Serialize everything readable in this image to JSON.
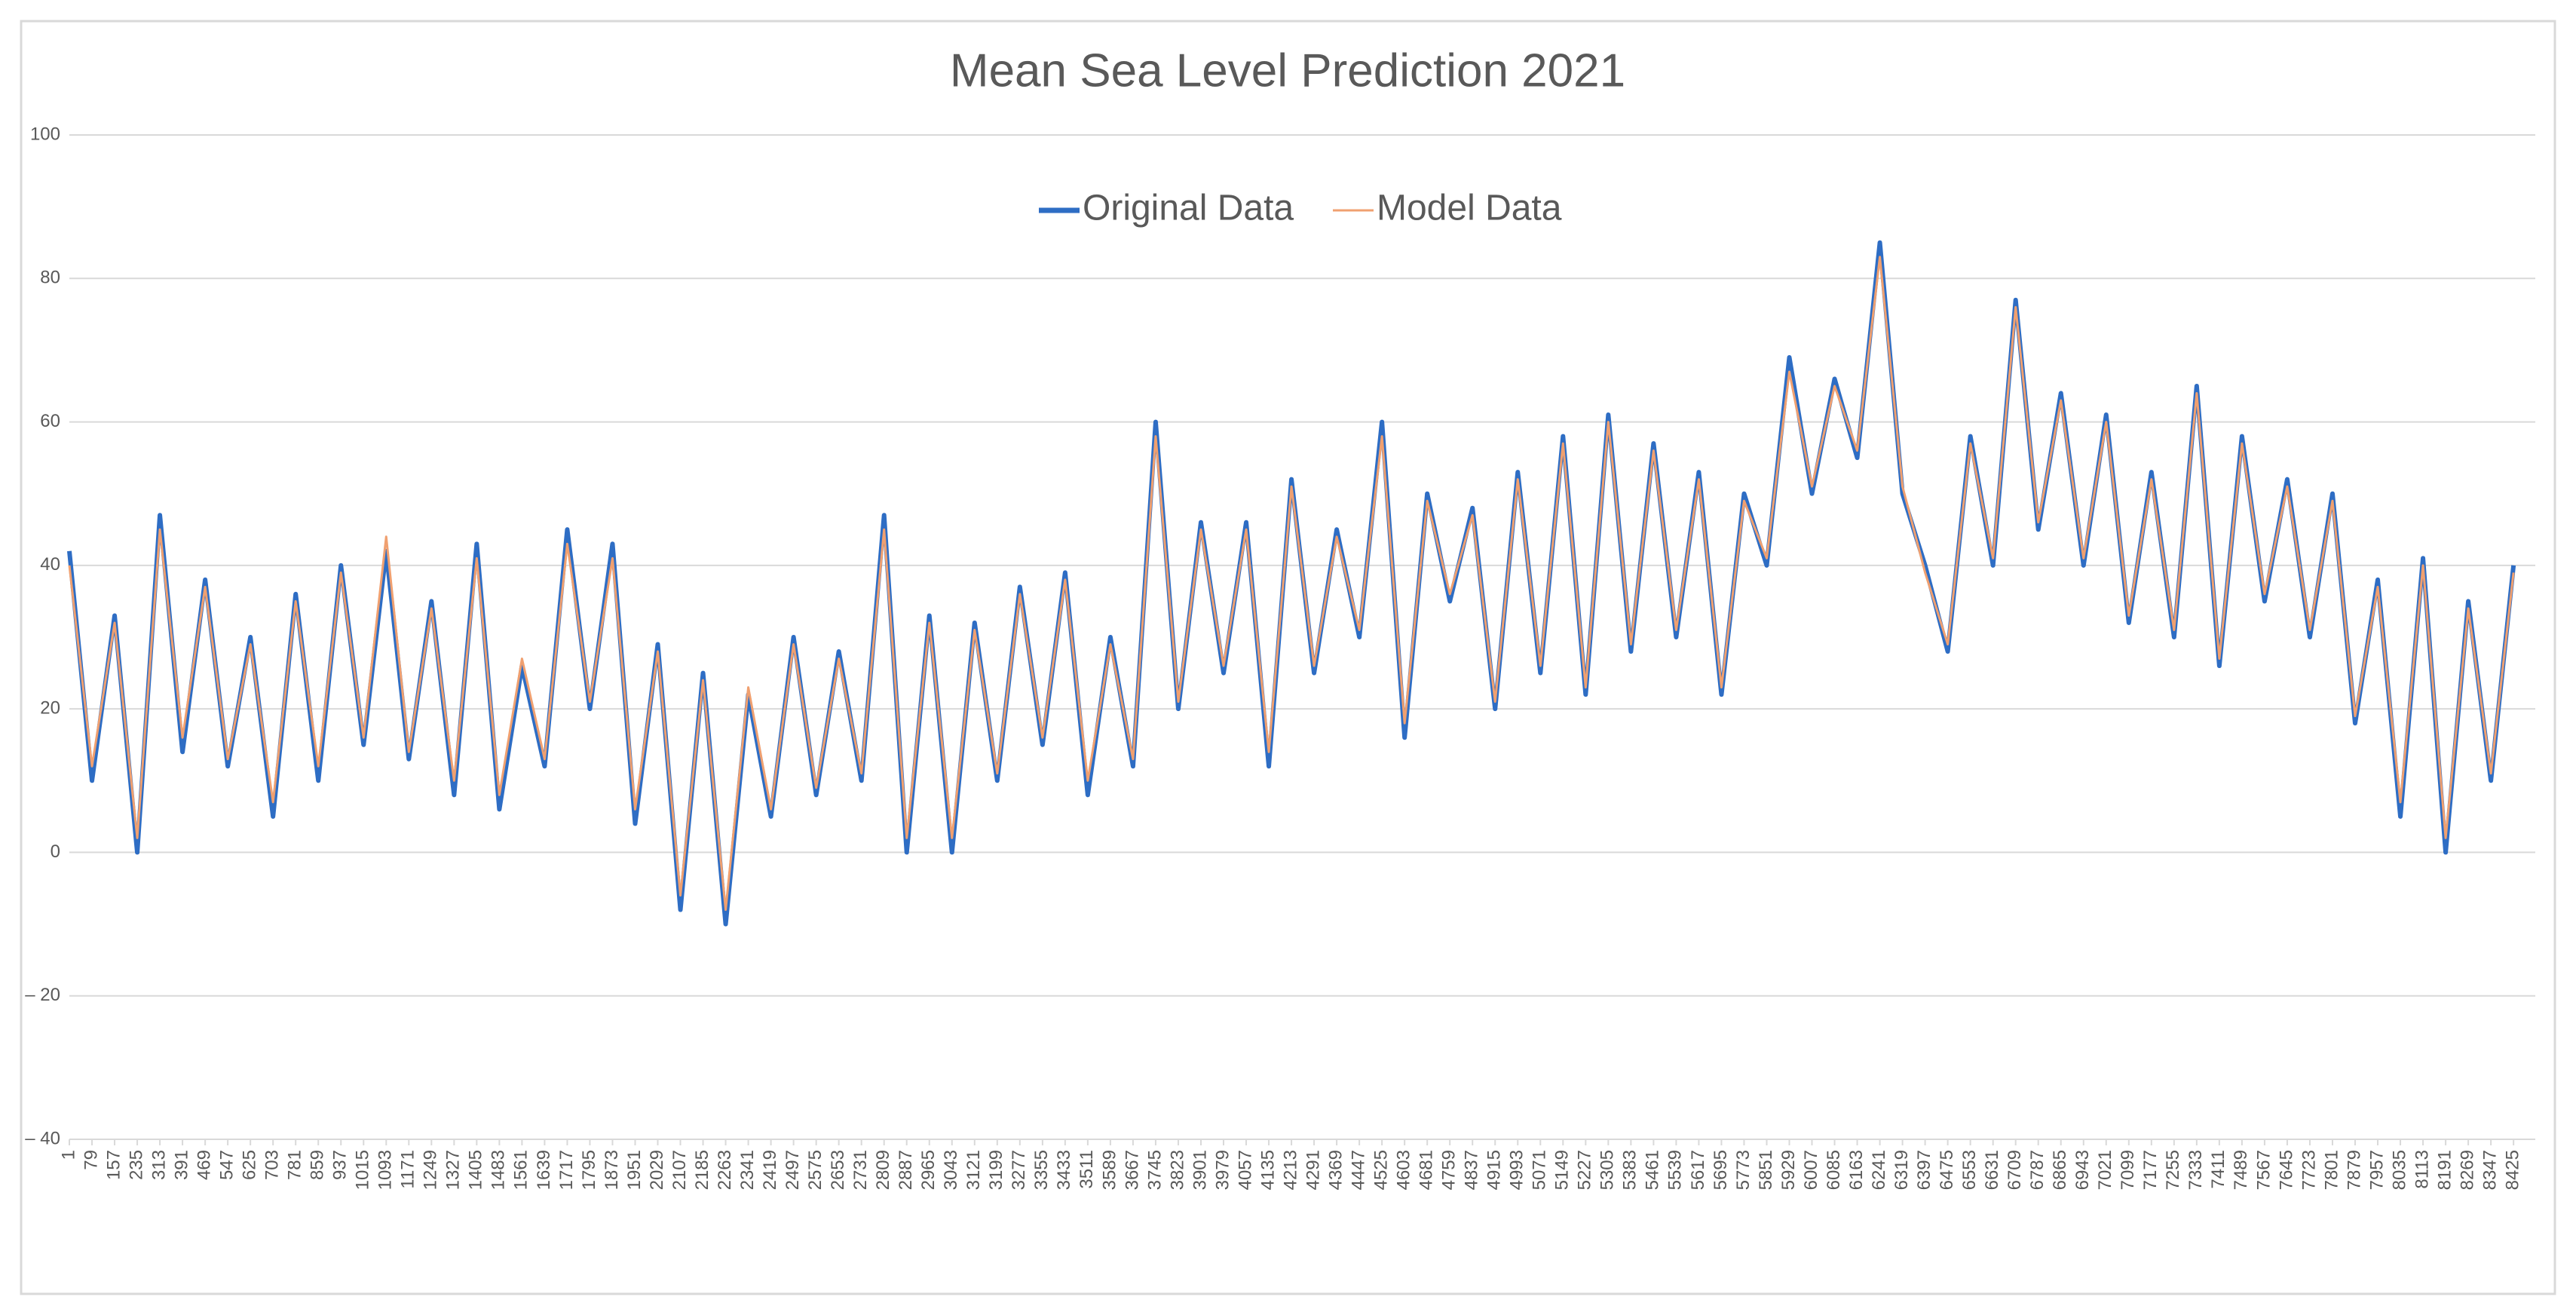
{
  "chart_data": {
    "type": "line",
    "title": "Mean Sea Level Prediction 2021",
    "x": [
      1,
      79,
      157,
      235,
      313,
      391,
      469,
      547,
      625,
      703,
      781,
      859,
      937,
      1015,
      1093,
      1171,
      1249,
      1327,
      1405,
      1483,
      1561,
      1639,
      1717,
      1795,
      1873,
      1951,
      2029,
      2107,
      2185,
      2263,
      2341,
      2419,
      2497,
      2575,
      2653,
      2731,
      2809,
      2887,
      2965,
      3043,
      3121,
      3199,
      3277,
      3355,
      3433,
      3511,
      3589,
      3667,
      3745,
      3823,
      3901,
      3979,
      4057,
      4135,
      4213,
      4291,
      4369,
      4447,
      4525,
      4603,
      4681,
      4759,
      4837,
      4915,
      4993,
      5071,
      5149,
      5227,
      5305,
      5383,
      5461,
      5539,
      5617,
      5695,
      5773,
      5851,
      5929,
      6007,
      6085,
      6163,
      6241,
      6319,
      6397,
      6475,
      6553,
      6631,
      6709,
      6787,
      6865,
      6943,
      7021,
      7099,
      7177,
      7255,
      7333,
      7411,
      7489,
      7567,
      7645,
      7723,
      7801,
      7879,
      7957,
      8035,
      8113,
      8191,
      8269,
      8347,
      8425
    ],
    "series": [
      {
        "name": "Original Data",
        "color": "#2e6dc4",
        "values": [
          42,
          10,
          33,
          0,
          47,
          14,
          38,
          12,
          30,
          5,
          36,
          10,
          40,
          15,
          42,
          13,
          35,
          8,
          43,
          6,
          26,
          12,
          45,
          20,
          43,
          4,
          29,
          -8,
          25,
          -10,
          22,
          5,
          30,
          8,
          28,
          10,
          47,
          0,
          33,
          0,
          32,
          10,
          37,
          15,
          39,
          8,
          30,
          12,
          60,
          20,
          46,
          25,
          46,
          12,
          52,
          25,
          45,
          30,
          60,
          16,
          50,
          35,
          48,
          20,
          53,
          25,
          58,
          22,
          61,
          28,
          57,
          30,
          53,
          22,
          50,
          40,
          69,
          50,
          66,
          55,
          85,
          50,
          40,
          28,
          58,
          40,
          77,
          45,
          64,
          40,
          61,
          32,
          53,
          30,
          65,
          26,
          58,
          35,
          52,
          30,
          50,
          18,
          38,
          5,
          41,
          0,
          35,
          10,
          40
        ]
      },
      {
        "name": "Model Data",
        "color": "#f0a070",
        "values": [
          40,
          12,
          32,
          2,
          45,
          16,
          37,
          13,
          29,
          7,
          35,
          12,
          39,
          16,
          44,
          14,
          34,
          10,
          41,
          8,
          27,
          13,
          43,
          21,
          41,
          6,
          28,
          -6,
          24,
          -8,
          23,
          6,
          29,
          9,
          27,
          11,
          45,
          2,
          32,
          2,
          31,
          11,
          36,
          16,
          38,
          10,
          29,
          13,
          58,
          21,
          45,
          26,
          45,
          14,
          51,
          26,
          44,
          31,
          58,
          18,
          49,
          36,
          47,
          21,
          52,
          26,
          57,
          23,
          60,
          29,
          56,
          31,
          52,
          23,
          49,
          41,
          67,
          51,
          65,
          56,
          83,
          51,
          39,
          29,
          57,
          41,
          76,
          46,
          63,
          41,
          60,
          33,
          52,
          31,
          64,
          27,
          57,
          36,
          51,
          31,
          49,
          19,
          37,
          7,
          40,
          2,
          34,
          11,
          39
        ]
      }
    ],
    "xlim": [
      1,
      8500
    ],
    "xticks": [
      1,
      79,
      157,
      235,
      313,
      391,
      469,
      547,
      625,
      703,
      781,
      859,
      937,
      1015,
      1093,
      1171,
      1249,
      1327,
      1405,
      1483,
      1561,
      1639,
      1717,
      1795,
      1873,
      1951,
      2029,
      2107,
      2185,
      2263,
      2341,
      2419,
      2497,
      2575,
      2653,
      2731,
      2809,
      2887,
      2965,
      3043,
      3121,
      3199,
      3277,
      3355,
      3433,
      3511,
      3589,
      3667,
      3745,
      3823,
      3901,
      3979,
      4057,
      4135,
      4213,
      4291,
      4369,
      4447,
      4525,
      4603,
      4681,
      4759,
      4837,
      4915,
      4993,
      5071,
      5149,
      5227,
      5305,
      5383,
      5461,
      5539,
      5617,
      5695,
      5773,
      5851,
      5929,
      6007,
      6085,
      6163,
      6241,
      6319,
      6397,
      6475,
      6553,
      6631,
      6709,
      6787,
      6865,
      6943,
      7021,
      7099,
      7177,
      7255,
      7333,
      7411,
      7489,
      7567,
      7645,
      7723,
      7801,
      7879,
      7957,
      8035,
      8113,
      8191,
      8269,
      8347,
      8425
    ],
    "ylim": [
      -40,
      100
    ],
    "yticks": [
      {
        "value": -40,
        "label": "– 40"
      },
      {
        "value": -20,
        "label": "– 20"
      },
      0,
      20,
      40,
      60,
      80,
      100
    ],
    "grid": true,
    "legend": "top"
  }
}
